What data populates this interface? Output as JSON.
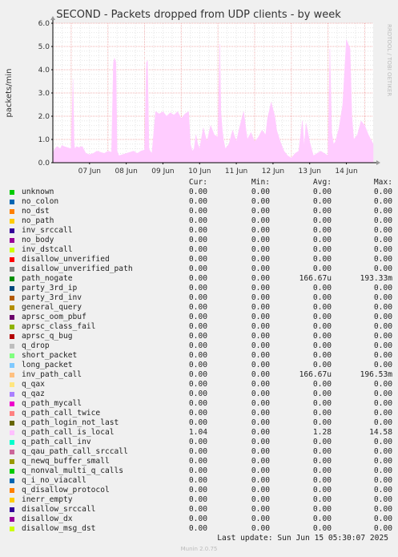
{
  "chart_data": {
    "type": "area",
    "title": "SECOND - Packets dropped from UDP clients - by week",
    "ylabel": "packets/min",
    "side_text": "RRDTOOL / TOBI OETIKER",
    "ylim": [
      0,
      6
    ],
    "yticks": [
      "0.0",
      "1.0",
      "2.0",
      "3.0",
      "4.0",
      "5.0",
      "6.0"
    ],
    "x_tick_labels": [
      "07 Jun",
      "08 Jun",
      "09 Jun",
      "10 Jun",
      "11 Jun",
      "12 Jun",
      "13 Jun",
      "14 Jun"
    ],
    "x_range_days": [
      6.5,
      15.23
    ],
    "grid": true,
    "series_color": "#ffccff",
    "series": [
      {
        "name": "q_path_call_is_local",
        "x": [
          6.5,
          6.55,
          6.62,
          6.7,
          6.75,
          6.8,
          6.9,
          7.0,
          7.05,
          7.08,
          7.1,
          7.15,
          7.2,
          7.3,
          7.4,
          7.5,
          7.6,
          7.7,
          7.8,
          7.9,
          8.0,
          8.1,
          8.15,
          8.18,
          8.22,
          8.25,
          8.3,
          8.4,
          8.5,
          8.6,
          8.7,
          8.8,
          8.9,
          9.0,
          9.05,
          9.08,
          9.12,
          9.15,
          9.2,
          9.3,
          9.4,
          9.5,
          9.6,
          9.7,
          9.8,
          9.9,
          10.0,
          10.1,
          10.2,
          10.25,
          10.3,
          10.35,
          10.4,
          10.45,
          10.5,
          10.6,
          10.7,
          10.8,
          10.9,
          11.0,
          11.05,
          11.08,
          11.12,
          11.15,
          11.2,
          11.3,
          11.4,
          11.5,
          11.6,
          11.7,
          11.8,
          11.9,
          12.0,
          12.1,
          12.2,
          12.3,
          12.35,
          12.45,
          12.55,
          12.6,
          12.7,
          12.8,
          12.9,
          13.0,
          13.1,
          13.2,
          13.3,
          13.35,
          13.4,
          13.5,
          13.6,
          13.7,
          13.8,
          13.9,
          14.0,
          14.05,
          14.1,
          14.15,
          14.2,
          14.3,
          14.4,
          14.5,
          14.6,
          14.65,
          14.7,
          14.8,
          14.9,
          15.0,
          15.1,
          15.2,
          15.23
        ],
        "y": [
          0.4,
          0.6,
          0.7,
          0.6,
          0.75,
          0.7,
          0.65,
          0.6,
          3.6,
          0.8,
          0.6,
          0.7,
          0.65,
          0.7,
          0.4,
          0.35,
          0.4,
          0.5,
          0.45,
          0.4,
          0.5,
          0.45,
          4.3,
          4.5,
          4.3,
          0.5,
          0.3,
          0.35,
          0.4,
          0.45,
          0.5,
          0.4,
          0.5,
          0.55,
          4.3,
          4.4,
          0.6,
          0.5,
          0.4,
          2.2,
          2.1,
          2.2,
          2.0,
          2.15,
          2.05,
          2.2,
          1.9,
          2.1,
          2.2,
          0.8,
          0.5,
          0.6,
          1.2,
          0.8,
          0.6,
          1.5,
          0.9,
          1.6,
          1.2,
          1.1,
          5.1,
          2.2,
          1.4,
          1.0,
          0.6,
          0.8,
          1.4,
          0.9,
          1.6,
          2.2,
          1.0,
          1.3,
          0.9,
          1.1,
          1.4,
          1.2,
          1.9,
          2.6,
          2.0,
          1.4,
          0.9,
          0.5,
          0.3,
          0.2,
          0.4,
          0.5,
          1.8,
          0.7,
          1.7,
          0.9,
          0.3,
          0.4,
          0.5,
          0.4,
          0.3,
          4.9,
          1.3,
          0.8,
          0.9,
          1.5,
          2.5,
          5.3,
          4.9,
          2.0,
          1.0,
          1.2,
          1.8,
          1.6,
          1.2,
          0.9,
          0.8
        ]
      }
    ]
  },
  "legend": {
    "headers": {
      "cur": "Cur:",
      "min": "Min:",
      "avg": "Avg:",
      "max": "Max:"
    },
    "rows": [
      {
        "name": "unknown",
        "color": "#00cc00",
        "cur": "0.00",
        "min": "0.00",
        "avg": "0.00",
        "max": "0.00"
      },
      {
        "name": "no_colon",
        "color": "#0066b3",
        "cur": "0.00",
        "min": "0.00",
        "avg": "0.00",
        "max": "0.00"
      },
      {
        "name": "no_dst",
        "color": "#ff8000",
        "cur": "0.00",
        "min": "0.00",
        "avg": "0.00",
        "max": "0.00"
      },
      {
        "name": "no_path",
        "color": "#ffcc00",
        "cur": "0.00",
        "min": "0.00",
        "avg": "0.00",
        "max": "0.00"
      },
      {
        "name": "inv_srccall",
        "color": "#330099",
        "cur": "0.00",
        "min": "0.00",
        "avg": "0.00",
        "max": "0.00"
      },
      {
        "name": "no_body",
        "color": "#990099",
        "cur": "0.00",
        "min": "0.00",
        "avg": "0.00",
        "max": "0.00"
      },
      {
        "name": "inv_dstcall",
        "color": "#ccff00",
        "cur": "0.00",
        "min": "0.00",
        "avg": "0.00",
        "max": "0.00"
      },
      {
        "name": "disallow_unverified",
        "color": "#ff0000",
        "cur": "0.00",
        "min": "0.00",
        "avg": "0.00",
        "max": "0.00"
      },
      {
        "name": "disallow_unverified_path",
        "color": "#808080",
        "cur": "0.00",
        "min": "0.00",
        "avg": "0.00",
        "max": "0.00"
      },
      {
        "name": "path_nogate",
        "color": "#008f00",
        "cur": "0.00",
        "min": "0.00",
        "avg": "166.67u",
        "max": "193.33m"
      },
      {
        "name": "party_3rd_ip",
        "color": "#00487d",
        "cur": "0.00",
        "min": "0.00",
        "avg": "0.00",
        "max": "0.00"
      },
      {
        "name": "party_3rd_inv",
        "color": "#b35a00",
        "cur": "0.00",
        "min": "0.00",
        "avg": "0.00",
        "max": "0.00"
      },
      {
        "name": "general_query",
        "color": "#b38f00",
        "cur": "0.00",
        "min": "0.00",
        "avg": "0.00",
        "max": "0.00"
      },
      {
        "name": "aprsc_oom_pbuf",
        "color": "#6b006b",
        "cur": "0.00",
        "min": "0.00",
        "avg": "0.00",
        "max": "0.00"
      },
      {
        "name": "aprsc_class_fail",
        "color": "#8fb300",
        "cur": "0.00",
        "min": "0.00",
        "avg": "0.00",
        "max": "0.00"
      },
      {
        "name": "aprsc_q_bug",
        "color": "#b30000",
        "cur": "0.00",
        "min": "0.00",
        "avg": "0.00",
        "max": "0.00"
      },
      {
        "name": "q_drop",
        "color": "#bebebe",
        "cur": "0.00",
        "min": "0.00",
        "avg": "0.00",
        "max": "0.00"
      },
      {
        "name": "short_packet",
        "color": "#80ff80",
        "cur": "0.00",
        "min": "0.00",
        "avg": "0.00",
        "max": "0.00"
      },
      {
        "name": "long_packet",
        "color": "#80c9ff",
        "cur": "0.00",
        "min": "0.00",
        "avg": "0.00",
        "max": "0.00"
      },
      {
        "name": "inv_path_call",
        "color": "#ffc080",
        "cur": "0.00",
        "min": "0.00",
        "avg": "166.67u",
        "max": "196.53m"
      },
      {
        "name": "q_qax",
        "color": "#ffe680",
        "cur": "0.00",
        "min": "0.00",
        "avg": "0.00",
        "max": "0.00"
      },
      {
        "name": "q_qaz",
        "color": "#aa80ff",
        "cur": "0.00",
        "min": "0.00",
        "avg": "0.00",
        "max": "0.00"
      },
      {
        "name": "q_path_mycall",
        "color": "#ee00cc",
        "cur": "0.00",
        "min": "0.00",
        "avg": "0.00",
        "max": "0.00"
      },
      {
        "name": "q_path_call_twice",
        "color": "#ff8080",
        "cur": "0.00",
        "min": "0.00",
        "avg": "0.00",
        "max": "0.00"
      },
      {
        "name": "q_path_login_not_last",
        "color": "#666600",
        "cur": "0.00",
        "min": "0.00",
        "avg": "0.00",
        "max": "0.00"
      },
      {
        "name": "q_path_call_is_local",
        "color": "#ffbfff",
        "cur": "1.04",
        "min": "0.00",
        "avg": "1.28",
        "max": "14.58"
      },
      {
        "name": "q_path_call_inv",
        "color": "#00ffcc",
        "cur": "0.00",
        "min": "0.00",
        "avg": "0.00",
        "max": "0.00"
      },
      {
        "name": "q_qau_path_call_srccall",
        "color": "#cc6699",
        "cur": "0.00",
        "min": "0.00",
        "avg": "0.00",
        "max": "0.00"
      },
      {
        "name": "q_newq_buffer_small",
        "color": "#999900",
        "cur": "0.00",
        "min": "0.00",
        "avg": "0.00",
        "max": "0.00"
      },
      {
        "name": "q_nonval_multi_q_calls",
        "color": "#00cc00",
        "cur": "0.00",
        "min": "0.00",
        "avg": "0.00",
        "max": "0.00"
      },
      {
        "name": "q_i_no_viacall",
        "color": "#0066b3",
        "cur": "0.00",
        "min": "0.00",
        "avg": "0.00",
        "max": "0.00"
      },
      {
        "name": "q_disallow_protocol",
        "color": "#ff8000",
        "cur": "0.00",
        "min": "0.00",
        "avg": "0.00",
        "max": "0.00"
      },
      {
        "name": "inerr_empty",
        "color": "#ffcc00",
        "cur": "0.00",
        "min": "0.00",
        "avg": "0.00",
        "max": "0.00"
      },
      {
        "name": "disallow_srccall",
        "color": "#330099",
        "cur": "0.00",
        "min": "0.00",
        "avg": "0.00",
        "max": "0.00"
      },
      {
        "name": "disallow_dx",
        "color": "#990099",
        "cur": "0.00",
        "min": "0.00",
        "avg": "0.00",
        "max": "0.00"
      },
      {
        "name": "disallow_msg_dst",
        "color": "#ccff00",
        "cur": "0.00",
        "min": "0.00",
        "avg": "0.00",
        "max": "0.00"
      }
    ]
  },
  "footer": {
    "last_update": "Last update: Sun Jun 15 05:30:07 2025",
    "munin": "Munin 2.0.75"
  }
}
